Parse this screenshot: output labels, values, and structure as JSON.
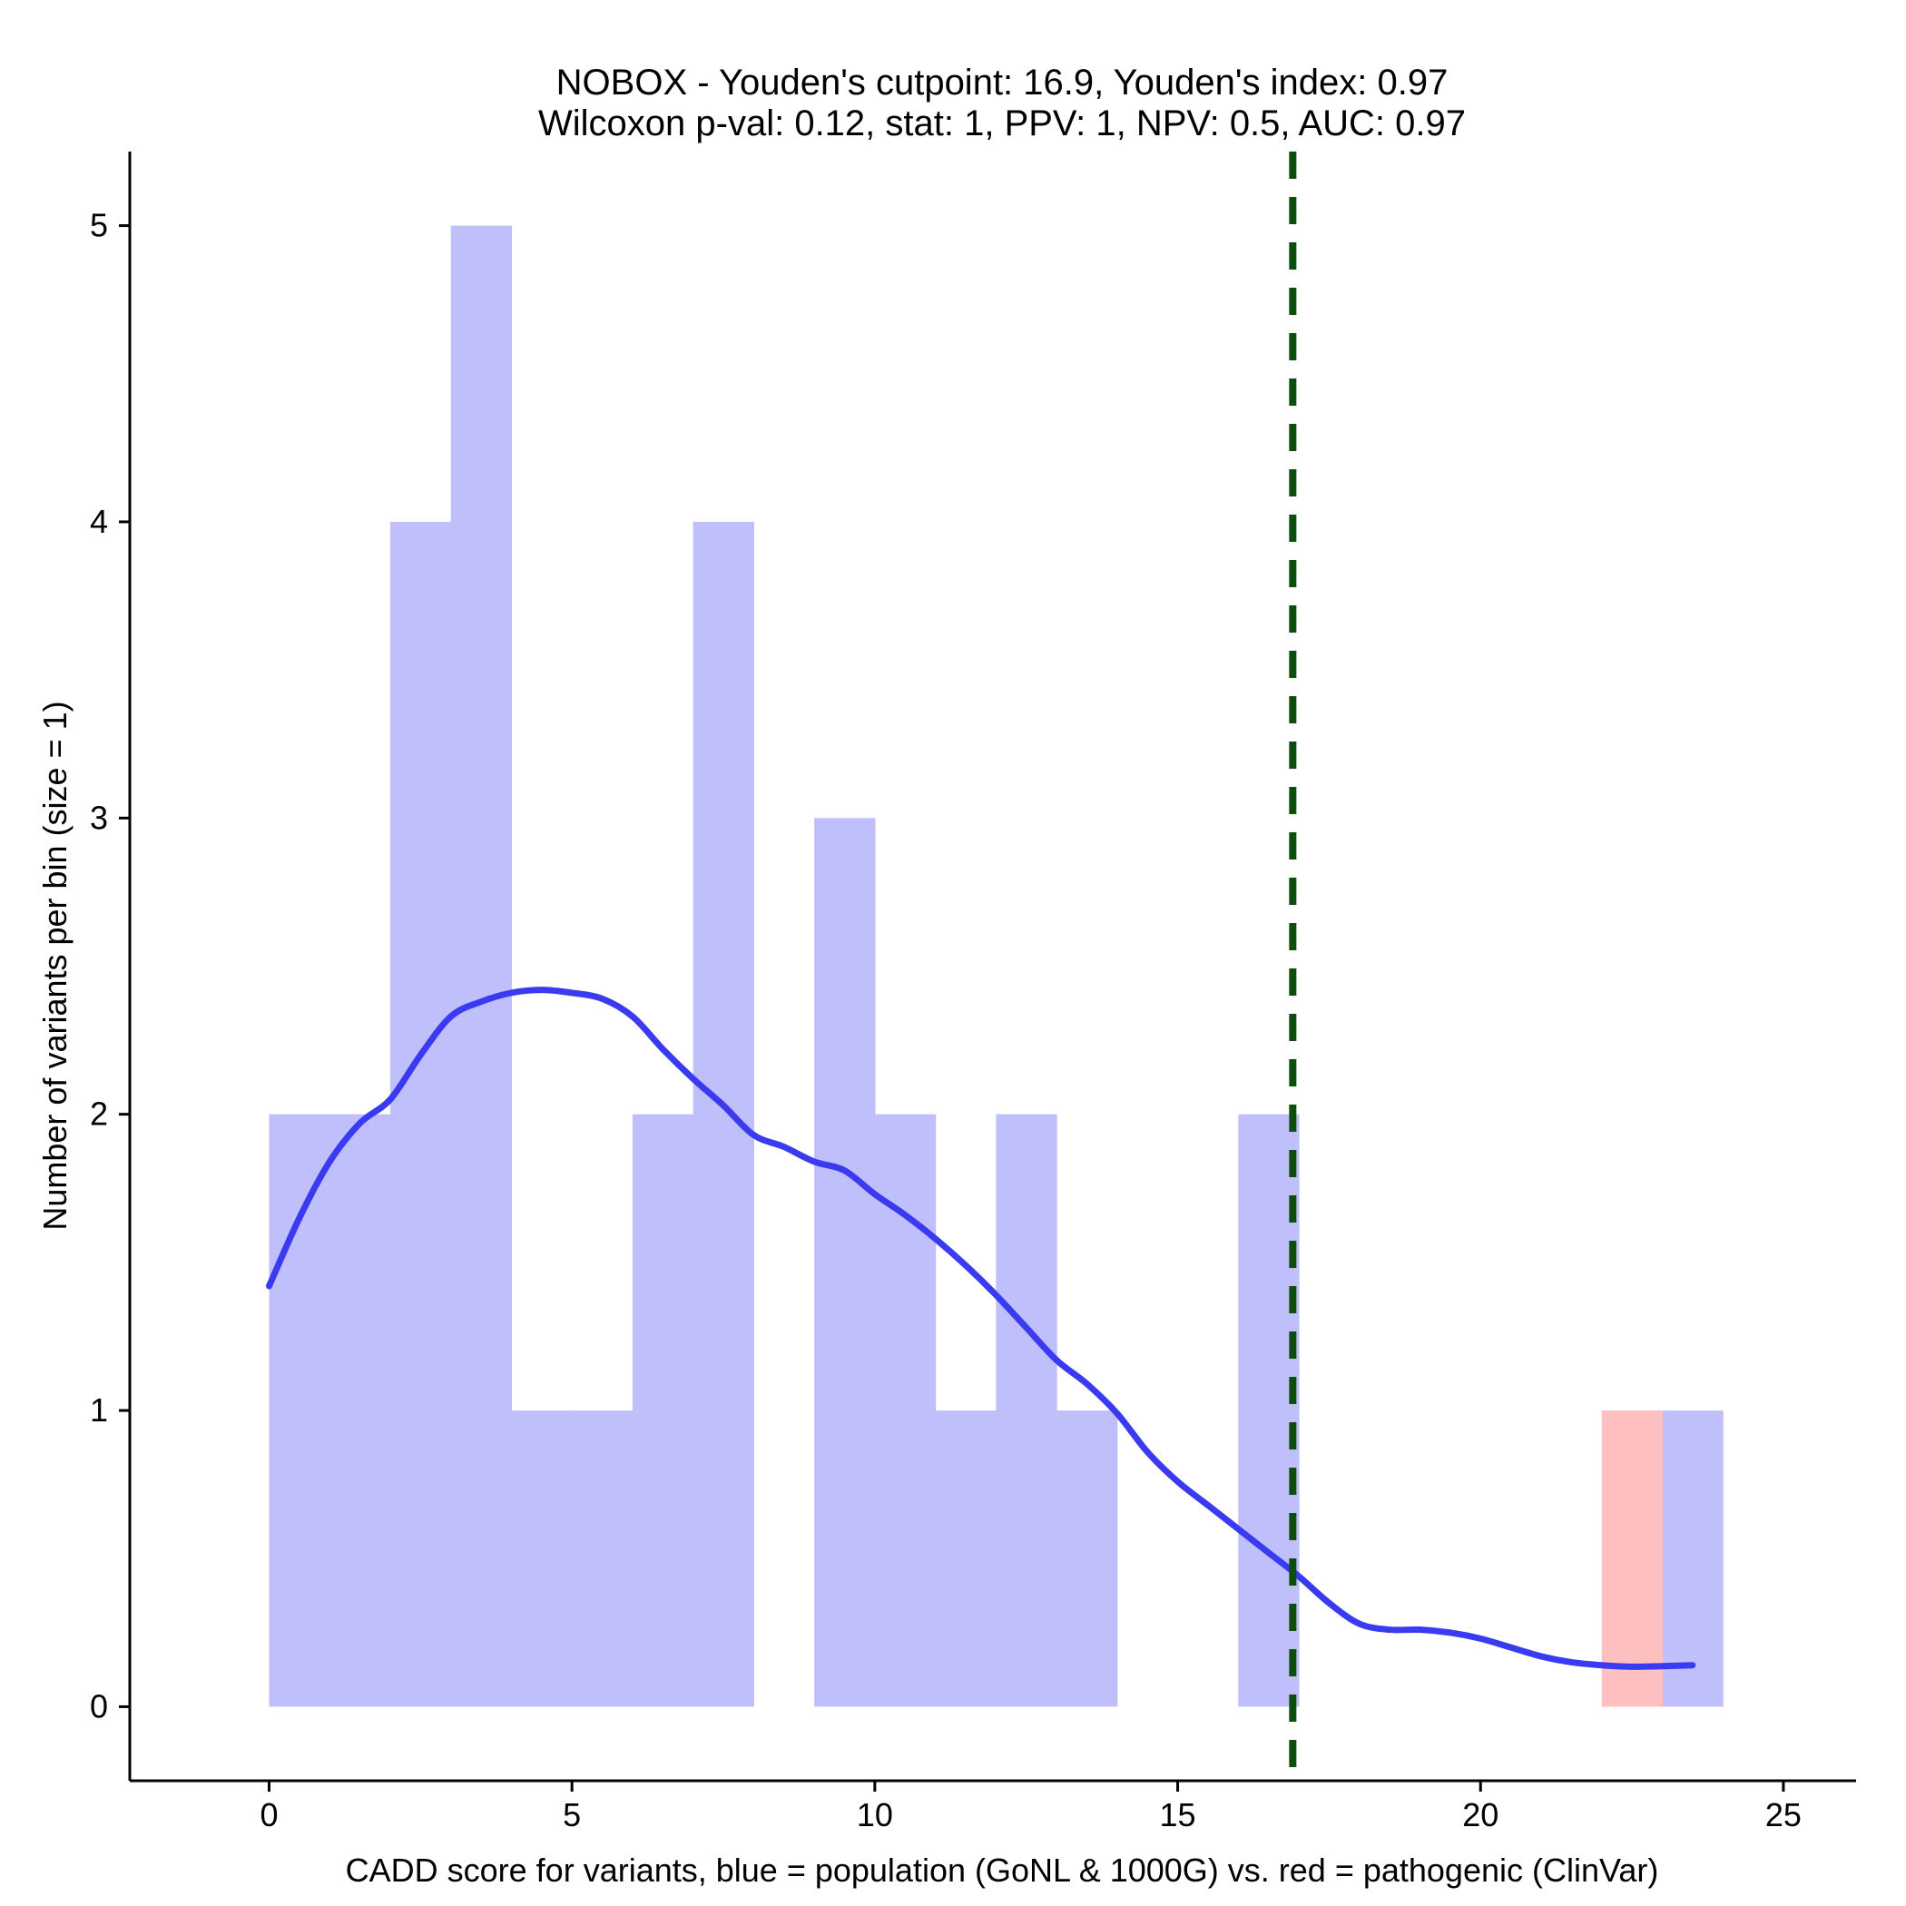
{
  "chart_data": {
    "type": "bar",
    "title": "NOBOX - Youden's cutpoint: 16.9, Youden's index: 0.97",
    "subtitle": "Wilcoxon p-val: 0.12, stat: 1, PPV: 1, NPV: 0.5, AUC: 0.97",
    "xlabel": "CADD score for variants, blue = population (GoNL & 1000G) vs. red = pathogenic (ClinVar)",
    "ylabel": "Number of variants per bin (size = 1)",
    "xlim": [
      -2.3,
      26.2
    ],
    "ylim": [
      -0.25,
      5.25
    ],
    "xticks": [
      0,
      5,
      10,
      15,
      20,
      25
    ],
    "yticks": [
      0,
      1,
      2,
      3,
      4,
      5
    ],
    "bin_width": 1,
    "series": [
      {
        "name": "population",
        "color": "#bfbffc",
        "bins": [
          {
            "start": 0,
            "count": 2
          },
          {
            "start": 1,
            "count": 2
          },
          {
            "start": 2,
            "count": 4
          },
          {
            "start": 3,
            "count": 5
          },
          {
            "start": 4,
            "count": 1
          },
          {
            "start": 5,
            "count": 1
          },
          {
            "start": 6,
            "count": 2
          },
          {
            "start": 7,
            "count": 4
          },
          {
            "start": 8,
            "count": 0
          },
          {
            "start": 9,
            "count": 3
          },
          {
            "start": 10,
            "count": 2
          },
          {
            "start": 11,
            "count": 1
          },
          {
            "start": 12,
            "count": 2
          },
          {
            "start": 13,
            "count": 1
          },
          {
            "start": 14,
            "count": 0
          },
          {
            "start": 15,
            "count": 0
          },
          {
            "start": 16,
            "count": 2
          },
          {
            "start": 17,
            "count": 0
          },
          {
            "start": 18,
            "count": 0
          },
          {
            "start": 19,
            "count": 0
          },
          {
            "start": 20,
            "count": 0
          },
          {
            "start": 21,
            "count": 0
          },
          {
            "start": 22,
            "count": 0
          },
          {
            "start": 23,
            "count": 1
          }
        ]
      },
      {
        "name": "pathogenic",
        "color": "#fdbfbf",
        "bins": [
          {
            "start": 22,
            "count": 1
          }
        ]
      }
    ],
    "density": {
      "name": "population density",
      "color": "#3a3af0",
      "x": [
        0,
        0.5,
        1,
        1.5,
        2,
        2.5,
        3,
        3.5,
        4,
        4.5,
        5,
        5.5,
        6,
        6.5,
        7,
        7.5,
        8,
        8.5,
        9,
        9.5,
        10,
        10.5,
        11,
        11.5,
        12,
        12.5,
        13,
        13.5,
        14,
        14.5,
        15,
        15.5,
        16,
        16.5,
        17,
        17.5,
        18,
        18.5,
        19,
        19.5,
        20,
        20.5,
        21,
        21.5,
        22,
        22.5,
        23,
        23.5
      ],
      "y": [
        1.42,
        1.65,
        1.84,
        1.97,
        2.05,
        2.2,
        2.33,
        2.38,
        2.41,
        2.42,
        2.41,
        2.39,
        2.33,
        2.22,
        2.12,
        2.03,
        1.93,
        1.89,
        1.84,
        1.81,
        1.73,
        1.66,
        1.58,
        1.49,
        1.39,
        1.28,
        1.17,
        1.09,
        0.99,
        0.86,
        0.76,
        0.68,
        0.6,
        0.52,
        0.44,
        0.35,
        0.28,
        0.26,
        0.26,
        0.25,
        0.23,
        0.2,
        0.17,
        0.15,
        0.14,
        0.135,
        0.137,
        0.14
      ]
    },
    "cutpoint": {
      "label": "Youden's cutpoint",
      "value": 16.9,
      "color": "#0d4d0d",
      "style": "dashed"
    },
    "grid": false,
    "legend": "none"
  }
}
